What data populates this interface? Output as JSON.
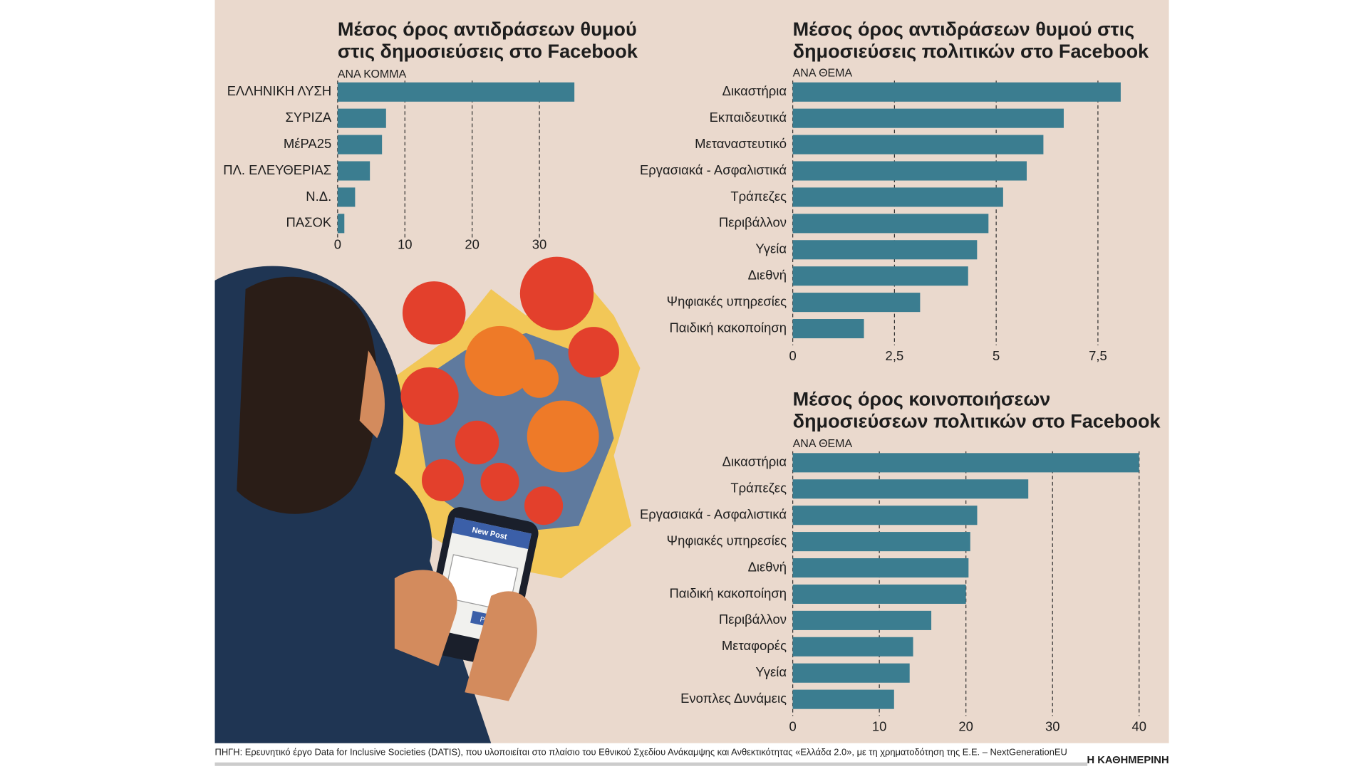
{
  "chart_data": [
    {
      "type": "bar",
      "orientation": "horizontal",
      "title": [
        "Μέσος όρος αντιδράσεων θυμού",
        "στις δημοσιεύσεις στο Facebook"
      ],
      "subtitle": "ΑΝΑ ΚΟΜΜΑ",
      "categories": [
        "ΕΛΛΗΝΙΚΗ ΛΥΣΗ",
        "ΣΥΡΙΖΑ",
        "ΜέΡΑ25",
        "ΠΛ. ΕΛΕΥΘΕΡΙΑΣ",
        "Ν.Δ.",
        "ΠΑΣΟΚ"
      ],
      "values": [
        35.2,
        7.2,
        6.6,
        4.8,
        2.6,
        1.0
      ],
      "color": "#3b7d90",
      "xlim": [
        0,
        35.2
      ],
      "xticks": [
        0,
        10,
        20,
        30
      ],
      "grid": true
    },
    {
      "type": "bar",
      "orientation": "horizontal",
      "title": [
        "Μέσος όρος αντιδράσεων θυμού στις",
        "δημοσιεύσεις πολιτικών στο Facebook"
      ],
      "subtitle": "ΑΝΑ ΘΕΜΑ",
      "categories": [
        "Δικαστήρια",
        "Εκπαιδευτικά",
        "Μεταναστευτικό",
        "Εργασιακά - Ασφαλιστικά",
        "Τράπεζες",
        "Περιβάλλον",
        "Υγεία",
        "Διεθνή",
        "Ψηφιακές υπηρεσίες",
        "Παιδική κακοποίηση"
      ],
      "values": [
        8.06,
        6.66,
        6.16,
        5.75,
        5.17,
        4.81,
        4.53,
        4.31,
        3.13,
        1.75
      ],
      "color": "#3b7d90",
      "xlim": [
        0,
        8.06
      ],
      "xticks": [
        0,
        {
          "value": 2.5,
          "label": "2,5"
        },
        5,
        {
          "value": 7.5,
          "label": "7,5"
        }
      ],
      "grid": true
    },
    {
      "type": "bar",
      "orientation": "horizontal",
      "title": [
        "Μέσος όρος κοινοποιήσεων",
        "δημοσιεύσεων πολιτικών στο Facebook"
      ],
      "subtitle": "ΑΝΑ ΘΕΜΑ",
      "categories": [
        "Δικαστήρια",
        "Τράπεζες",
        "Εργασιακά - Ασφαλιστικά",
        "Ψηφιακές υπηρεσίες",
        "Διεθνή",
        "Παιδική κακοποίηση",
        "Περιβάλλον",
        "Μεταφορές",
        "Υγεία",
        "Ενοπλες Δυνάμεις"
      ],
      "values": [
        40.0,
        27.2,
        21.3,
        20.5,
        20.3,
        20.0,
        16.0,
        13.9,
        13.5,
        11.7
      ],
      "color": "#3b7d90",
      "xlim": [
        0,
        40
      ],
      "xticks": [
        0,
        10,
        20,
        30,
        40
      ],
      "grid": true
    }
  ],
  "source": "ΠΗΓΗ: Ερευνητικό έργο Data for Inclusive Societies (DATIS), που υλοποιείται στο πλαίσιο του Εθνικού Σχεδίου Ανάκαμψης και Ανθεκτικότητας «Ελλάδα 2.0», με τη χρηματοδότηση της Ε.Ε. – NextGenerationEU",
  "brand": "Η ΚΑΘΗΜΕΡΙΝΗ",
  "phone_screen": {
    "header": "New Post",
    "button": "Post"
  }
}
